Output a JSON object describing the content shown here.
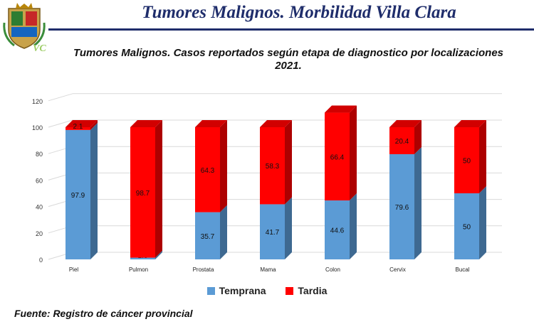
{
  "header": {
    "title": "Tumores Malignos. Morbilidad Villa Clara",
    "logo_text": "VC"
  },
  "chart_data": {
    "type": "bar",
    "stacked": true,
    "title": "Tumores Malignos. Casos reportados según etapa de diagnostico por localizaciones",
    "title_year": "2021.",
    "categories": [
      "Piel",
      "Pulmon",
      "Prostata",
      "Mama",
      "Colon",
      "Cervix",
      "Bucal"
    ],
    "series": [
      {
        "name": "Temprana",
        "color": "#5b9bd5",
        "values": [
          97.9,
          1.3,
          35.7,
          41.7,
          44.6,
          79.6,
          50
        ]
      },
      {
        "name": "Tardia",
        "color": "#ff0000",
        "values": [
          2.1,
          98.7,
          64.3,
          58.3,
          66.4,
          20.4,
          50
        ]
      }
    ],
    "ylim": [
      0,
      120
    ],
    "yticks": [
      0,
      20,
      40,
      60,
      80,
      100,
      120
    ],
    "grid": true,
    "legend": "bottom",
    "xlabel": "",
    "ylabel": ""
  },
  "footer": {
    "source": "Fuente: Registro de cáncer provincial"
  }
}
